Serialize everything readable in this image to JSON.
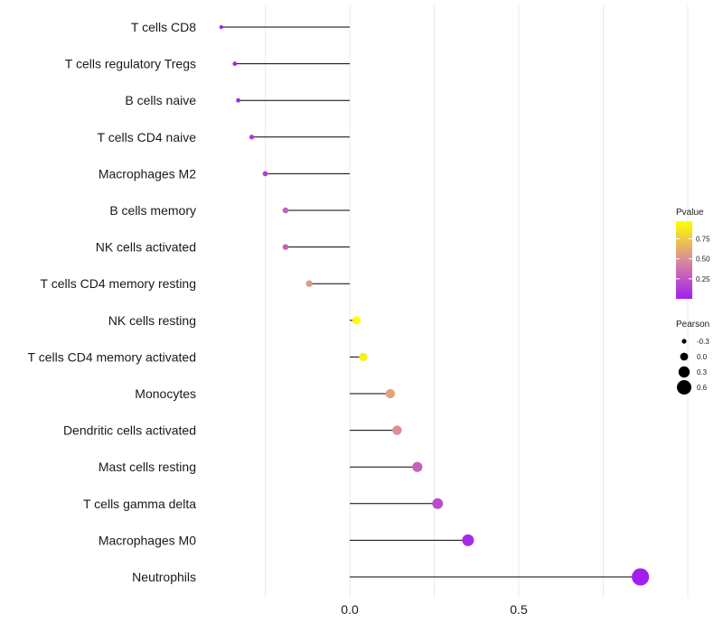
{
  "chart_data": {
    "type": "lollipop",
    "categories": [
      "T cells CD8",
      "T cells regulatory  Tregs",
      "B cells naive",
      "T cells CD4 naive",
      "Macrophages M2",
      "B cells memory",
      "NK cells activated",
      "T cells CD4 memory resting",
      "NK cells resting",
      "T cells CD4 memory activated",
      "Monocytes",
      "Dendritic cells activated",
      "Mast cells resting",
      "T cells gamma delta",
      "Macrophages M0",
      "Neutrophils"
    ],
    "pearson": [
      -0.38,
      -0.34,
      -0.33,
      -0.29,
      -0.25,
      -0.19,
      -0.19,
      -0.12,
      0.02,
      0.04,
      0.12,
      0.14,
      0.2,
      0.26,
      0.35,
      0.86
    ],
    "pvalue": [
      0.0,
      0.01,
      0.03,
      0.1,
      0.15,
      0.3,
      0.3,
      0.55,
      0.97,
      0.9,
      0.58,
      0.5,
      0.3,
      0.2,
      0.05,
      0.0
    ],
    "x_axis": {
      "lim": [
        -0.5,
        1.1
      ],
      "ticks": [
        0.0,
        0.5
      ],
      "tick_labels": [
        "0.0",
        "0.5"
      ],
      "gridlines": [
        -0.25,
        0.0,
        0.25,
        0.5,
        0.75,
        1.0
      ],
      "xlabel": "",
      "ylabel": ""
    },
    "legend_color": {
      "title": "Pvalue",
      "ticks": [
        0.75,
        0.5,
        0.25
      ],
      "labels": [
        "0.75",
        "0.50",
        "0.25"
      ],
      "range": [
        0.0,
        0.97
      ],
      "color_low": "#a020f0",
      "color_mid": "#dc8a9c",
      "color_high": "#ffff00"
    },
    "legend_size": {
      "title": "Pearson",
      "values": [
        -0.3,
        0.0,
        0.3,
        0.6
      ],
      "labels": [
        "-0.3",
        "0.0",
        "0.3",
        "0.6"
      ]
    },
    "colors": {
      "segment": "#000000",
      "grid": "#ebebeb"
    }
  }
}
